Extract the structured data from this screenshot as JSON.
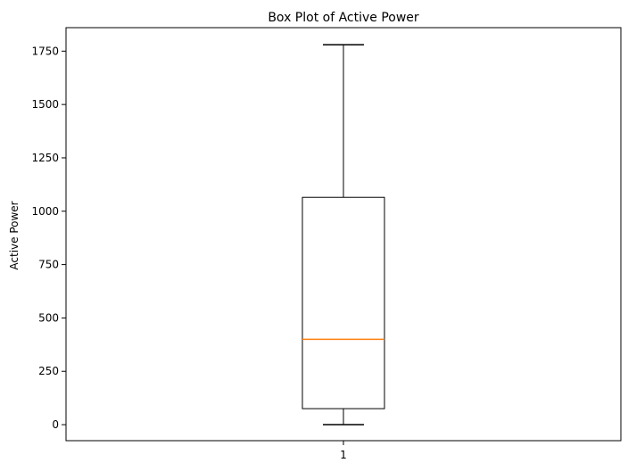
{
  "chart_data": {
    "type": "box",
    "title": "Box Plot of Active Power",
    "xlabel": "",
    "ylabel": "Active Power",
    "categories": [
      "1"
    ],
    "y_ticks": [
      0,
      250,
      500,
      750,
      1000,
      1250,
      1500,
      1750
    ],
    "ylim": [
      -75,
      1860
    ],
    "boxes": [
      {
        "category": "1",
        "min": 0,
        "q1": 75,
        "median": 400,
        "q3": 1065,
        "max": 1780
      }
    ],
    "grid": false,
    "colors": {
      "box": "#000000",
      "median": "#ff7f0e",
      "whisker": "#000000"
    }
  }
}
